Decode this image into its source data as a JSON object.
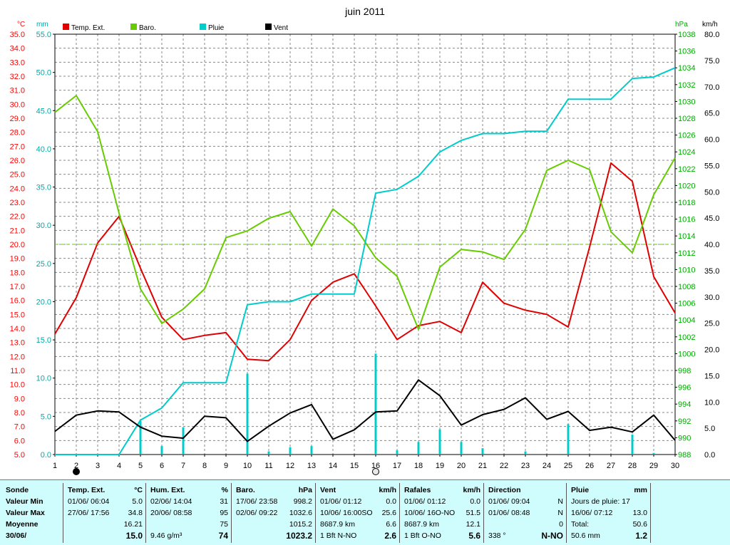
{
  "chart_data": {
    "type": "line",
    "title": "juin 2011",
    "x": [
      1,
      2,
      3,
      4,
      5,
      6,
      7,
      8,
      9,
      10,
      11,
      12,
      13,
      14,
      15,
      16,
      17,
      18,
      19,
      20,
      21,
      22,
      23,
      24,
      25,
      26,
      27,
      28,
      29,
      30
    ],
    "xlim": [
      1,
      30
    ],
    "axes": {
      "temp": {
        "label": "°C",
        "range": [
          5.0,
          35.0
        ],
        "ticks": [
          "35.0",
          "34.0",
          "33.0",
          "32.0",
          "31.0",
          "30.0",
          "29.0",
          "28.0",
          "27.0",
          "26.0",
          "25.0",
          "24.0",
          "23.0",
          "22.0",
          "21.0",
          "20.0",
          "19.0",
          "18.0",
          "17.0",
          "16.0",
          "15.0",
          "14.0",
          "13.0",
          "12.0",
          "11.0",
          "10.0",
          "9.0",
          "8.0",
          "7.0",
          "6.0",
          "5.0"
        ],
        "color": "#ff0000"
      },
      "rain": {
        "label": "mm",
        "range": [
          0.0,
          55.0
        ],
        "ticks": [
          "55.0",
          "50.0",
          "45.0",
          "40.0",
          "35.0",
          "30.0",
          "25.0",
          "20.0",
          "15.0",
          "10.0",
          "5.0",
          "0.0"
        ],
        "color": "#00aaaa"
      },
      "baro": {
        "label": "hPa",
        "range": [
          988,
          1038
        ],
        "ticks": [
          "1038",
          "1036",
          "1034",
          "1032",
          "1030",
          "1028",
          "1026",
          "1024",
          "1022",
          "1020",
          "1018",
          "1016",
          "1014",
          "1012",
          "1010",
          "1008",
          "1006",
          "1004",
          "1002",
          "1000",
          "998",
          "996",
          "994",
          "992",
          "990",
          "988"
        ],
        "color": "#00aa00"
      },
      "wind": {
        "label": "km/h",
        "range": [
          0.0,
          80.0
        ],
        "ticks": [
          "80.0",
          "75.0",
          "70.0",
          "65.0",
          "60.0",
          "55.0",
          "50.0",
          "45.0",
          "40.0",
          "35.0",
          "30.0",
          "25.0",
          "20.0",
          "15.0",
          "10.0",
          "5.0",
          "0.0"
        ],
        "color": "#000000"
      }
    },
    "x_ticks": [
      "1",
      "2",
      "3",
      "4",
      "5",
      "6",
      "7",
      "8",
      "9",
      "10",
      "11",
      "12",
      "13",
      "14",
      "15",
      "16",
      "17",
      "18",
      "19",
      "20",
      "21",
      "22",
      "23",
      "24",
      "25",
      "26",
      "27",
      "28",
      "29",
      "30"
    ],
    "grid": true,
    "legend": "top",
    "series": [
      {
        "name": "Temp. Ext.",
        "axis": "temp",
        "color": "#e00000",
        "values": [
          13.6,
          16.2,
          20.1,
          22.0,
          18.3,
          14.8,
          13.2,
          13.5,
          13.7,
          11.8,
          11.7,
          13.2,
          16.0,
          17.3,
          17.9,
          15.6,
          13.2,
          14.2,
          14.5,
          13.7,
          17.3,
          15.8,
          15.3,
          15.0,
          14.1,
          19.8,
          25.8,
          24.5,
          17.7,
          15.1
        ]
      },
      {
        "name": "Baro.",
        "axis": "baro",
        "color": "#66cc00",
        "values": [
          1028.7,
          1030.7,
          1026.4,
          1016.7,
          1007.7,
          1003.6,
          1005.3,
          1007.7,
          1013.8,
          1014.6,
          1016.1,
          1016.9,
          1012.8,
          1017.2,
          1015.2,
          1011.4,
          1009.2,
          1002.9,
          1010.3,
          1012.4,
          1012.1,
          1011.2,
          1014.8,
          1021.8,
          1023.0,
          1021.9,
          1014.5,
          1012.0,
          1018.9,
          1023.3
        ]
      },
      {
        "name": "Pluie",
        "axis": "rain",
        "color": "#00cccc",
        "values": [
          0,
          0,
          0,
          0,
          4.5,
          6.1,
          9.4,
          9.4,
          9.4,
          19.6,
          20.0,
          20.0,
          21.0,
          21.0,
          21.0,
          34.2,
          34.7,
          36.4,
          39.6,
          41.1,
          42.0,
          42.0,
          42.3,
          42.3,
          46.5,
          46.5,
          46.5,
          49.2,
          49.4,
          50.6
        ]
      },
      {
        "name": "Vent",
        "axis": "wind",
        "color": "#000000",
        "values": [
          4.4,
          7.5,
          8.3,
          8.1,
          5.2,
          3.5,
          3.1,
          7.3,
          7.0,
          2.5,
          5.4,
          7.9,
          9.5,
          2.9,
          4.7,
          8.1,
          8.3,
          14.2,
          11.2,
          5.6,
          7.6,
          8.6,
          10.8,
          6.7,
          8.2,
          4.6,
          5.2,
          4.3,
          7.5,
          2.7
        ]
      },
      {
        "name": "Rafales",
        "axis": "wind",
        "type": "bar",
        "color": "#00cccc",
        "values": [
          0,
          0,
          0,
          0,
          6.4,
          1.6,
          5.2,
          0,
          0,
          15.4,
          0.6,
          1.4,
          1.6,
          0,
          0,
          19.2,
          0.8,
          2.4,
          4.8,
          2.4,
          1.2,
          0,
          0.6,
          0,
          5.8,
          0,
          0,
          3.8,
          0.3,
          0
        ]
      }
    ],
    "reference_line": {
      "axis": "temp",
      "value": 20.0,
      "color": "#66cc00"
    }
  },
  "panel": {
    "col1": {
      "header": "Sonde",
      "r1": "Valeur Min",
      "r2": "Valeur Max",
      "r3": "Moyenne",
      "r4": "30/06/"
    },
    "col2": {
      "header": "Temp. Ext.",
      "unit": "°C",
      "r1a": "01/06/  06:04",
      "r1b": "5.0",
      "r2a": "27/06/  17:56",
      "r2b": "34.8",
      "r3b": "16.21",
      "r4b": "15.0"
    },
    "col3": {
      "header": "Hum. Ext.",
      "unit": "%",
      "r1a": "02/06/  14:04",
      "r1b": "31",
      "r2a": "20/06/  08:58",
      "r2b": "95",
      "r3b": "75",
      "r4a": "9.46 g/m³",
      "r4b": "74"
    },
    "col4": {
      "header": "Baro.",
      "unit": "hPa",
      "r1a": "17/06/  23:58",
      "r1b": "998.2",
      "r2a": "02/06/  09:22",
      "r2b": "1032.6",
      "r3b": "1015.2",
      "r4b": "1023.2"
    },
    "col5": {
      "header": "Vent",
      "unit": "km/h",
      "r1a": "01/06/  01:12",
      "r1b": "0.0",
      "r2a": "10/06/  16:00SO",
      "r2b": "25.6",
      "r3a": "8687.9 km",
      "r3b": "6.6",
      "r4a": "1 Bft N-NO",
      "r4b": "2.6"
    },
    "col6": {
      "header": "Rafales",
      "unit": "km/h",
      "r1a": "01/06/  01:12",
      "r1b": "0.0",
      "r2a": "10/06/  16O-NO",
      "r2b": "51.5",
      "r3a": "8687.9 km",
      "r3b": "12.1",
      "r4a": "1 Bft O-NO",
      "r4b": "5.6"
    },
    "col7": {
      "header": "Direction",
      "r1a": "01/06/  09:04",
      "r1b": "N",
      "r2a": "01/06/  08:48",
      "r2b": "N",
      "r3b": "0",
      "r4a": "338 °",
      "r4b": "N-NO"
    },
    "col8": {
      "header": "Pluie",
      "unit": "mm",
      "r1a": "Jours de pluie: 17",
      "r2a": "16/06/  07:12",
      "r2b": "13.0",
      "r3a": "Total:",
      "r3b": "50.6",
      "r4a": "50.6 mm",
      "r4b": "1.2"
    }
  }
}
